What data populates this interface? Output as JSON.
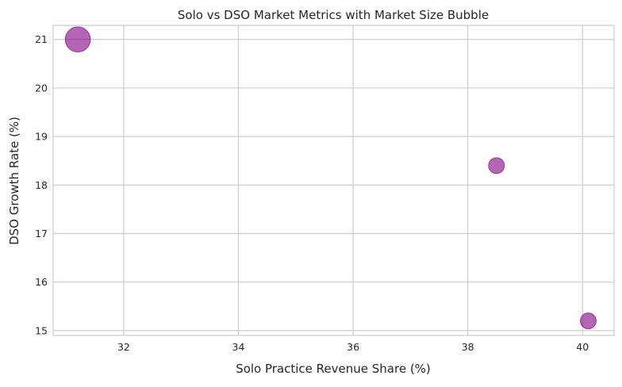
{
  "chart_data": {
    "type": "scatter",
    "title": "Solo vs DSO Market Metrics with Market Size Bubble",
    "xlabel": "Solo Practice Revenue Share (%)",
    "ylabel": "DSO Growth Rate (%)",
    "xlim": [
      30.77,
      40.55
    ],
    "ylim": [
      14.9,
      21.29
    ],
    "xticks": [
      32,
      34,
      36,
      38,
      40
    ],
    "yticks": [
      15,
      16,
      17,
      18,
      19,
      20,
      21
    ],
    "grid": true,
    "points": [
      {
        "x": 31.2,
        "y": 21.0,
        "size": 2.5
      },
      {
        "x": 38.5,
        "y": 18.4,
        "size": 1.0
      },
      {
        "x": 40.1,
        "y": 15.2,
        "size": 1.0
      }
    ],
    "colors": {
      "marker": "#800080",
      "grid": "#cccccc",
      "axes": "#cccccc"
    }
  }
}
